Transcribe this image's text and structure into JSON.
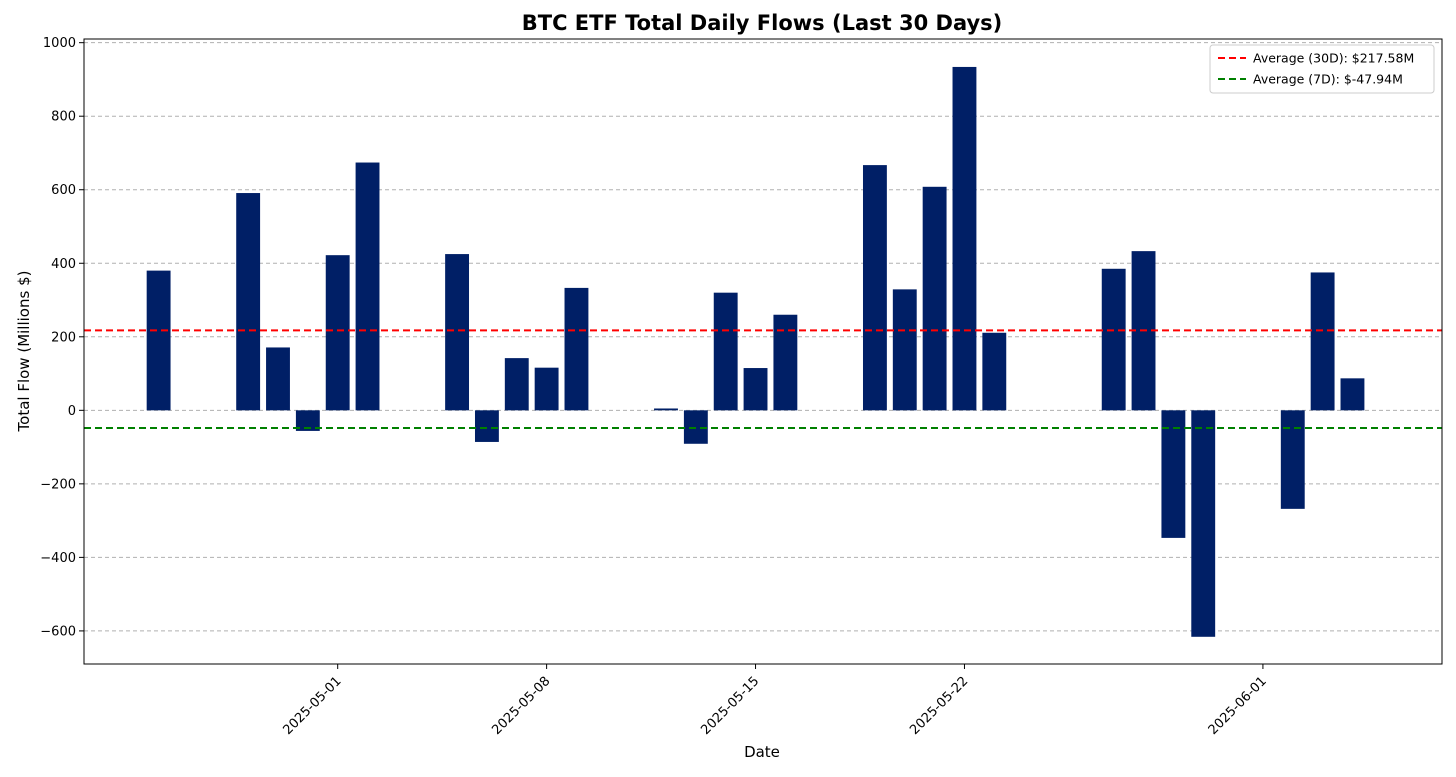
{
  "chart_data": {
    "type": "bar",
    "title": "BTC ETF Total Daily Flows (Last 30 Days)",
    "xlabel": "Date",
    "ylabel": "Total Flow (Millions $)",
    "ylim": [
      -690,
      1010
    ],
    "yticks": [
      -600,
      -400,
      -200,
      0,
      200,
      400,
      600,
      800,
      1000
    ],
    "yticks_labels": [
      "−600",
      "−400",
      "−200",
      "0",
      "200",
      "400",
      "600",
      "800",
      "1000"
    ],
    "xlim": [
      "2025-04-22T12:00",
      "2025-06-07T00:00"
    ],
    "xticks": [
      "2025-05-01",
      "2025-05-08",
      "2025-05-15",
      "2025-05-22",
      "2025-06-01"
    ],
    "grid": "y-dashed",
    "bar_color": "#001f66",
    "series": [
      {
        "dates": [
          "2025-04-25",
          "2025-04-28",
          "2025-04-29",
          "2025-04-30",
          "2025-05-01",
          "2025-05-02",
          "2025-05-05",
          "2025-05-06",
          "2025-05-07",
          "2025-05-08",
          "2025-05-09",
          "2025-05-12",
          "2025-05-13",
          "2025-05-14",
          "2025-05-15",
          "2025-05-16",
          "2025-05-19",
          "2025-05-20",
          "2025-05-21",
          "2025-05-22",
          "2025-05-23",
          "2025-05-27",
          "2025-05-28",
          "2025-05-29",
          "2025-05-30",
          "2025-06-02",
          "2025-06-03",
          "2025-06-04"
        ],
        "values": [
          380,
          591,
          171,
          -56,
          422,
          674,
          425,
          -86,
          142,
          116,
          333,
          5,
          -91,
          320,
          115,
          260,
          667,
          329,
          608,
          934,
          211,
          385,
          433,
          -347,
          -616,
          -268,
          375,
          87
        ]
      }
    ],
    "lines": [
      {
        "name": "Average (30D): $217.58M",
        "value": 217.58,
        "color": "#ff0000",
        "style": "dashed"
      },
      {
        "name": "Average (7D): $-47.94M",
        "value": -47.94,
        "color": "#008000",
        "style": "dashed"
      }
    ],
    "legend_position": "top-right"
  }
}
